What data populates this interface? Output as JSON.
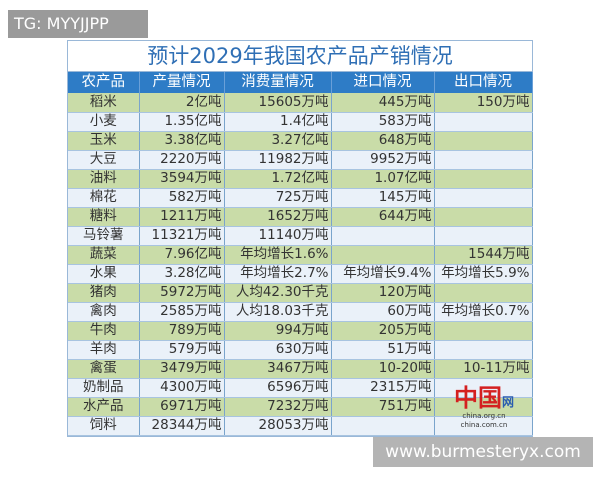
{
  "overlay_tag": "TG: MYYJJPP",
  "watermark": "www.burmesteryx.com",
  "logo": {
    "mark": "中国",
    "net": "网",
    "line1": "china.org.cn",
    "line2": "china.com.cn"
  },
  "title": "预计2029年我国农产品产销情况",
  "headers": [
    "农产品",
    "产量情况",
    "消费量情况",
    "进口情况",
    "出口情况"
  ],
  "rows": [
    [
      "稻米",
      "2亿吨",
      "15605万吨",
      "445万吨",
      "150万吨"
    ],
    [
      "小麦",
      "1.35亿吨",
      "1.4亿吨",
      "583万吨",
      ""
    ],
    [
      "玉米",
      "3.38亿吨",
      "3.27亿吨",
      "648万吨",
      ""
    ],
    [
      "大豆",
      "2220万吨",
      "11982万吨",
      "9952万吨",
      ""
    ],
    [
      "油料",
      "3594万吨",
      "1.72亿吨",
      "1.07亿吨",
      ""
    ],
    [
      "棉花",
      "582万吨",
      "725万吨",
      "145万吨",
      ""
    ],
    [
      "糖料",
      "1211万吨",
      "1652万吨",
      "644万吨",
      ""
    ],
    [
      "马铃薯",
      "11321万吨",
      "11140万吨",
      "",
      ""
    ],
    [
      "蔬菜",
      "7.96亿吨",
      "年均增长1.6%",
      "",
      "1544万吨"
    ],
    [
      "水果",
      "3.28亿吨",
      "年均增长2.7%",
      "年均增长9.4%",
      "年均增长5.9%"
    ],
    [
      "猪肉",
      "5972万吨",
      "人均42.30千克",
      "120万吨",
      ""
    ],
    [
      "禽肉",
      "2585万吨",
      "人均18.03千克",
      "60万吨",
      "年均增长0.7%"
    ],
    [
      "牛肉",
      "789万吨",
      "994万吨",
      "205万吨",
      ""
    ],
    [
      "羊肉",
      "579万吨",
      "630万吨",
      "51万吨",
      ""
    ],
    [
      "禽蛋",
      "3479万吨",
      "3467万吨",
      "10-20吨",
      "10-11万吨"
    ],
    [
      "奶制品",
      "4300万吨",
      "6596万吨",
      "2315万吨",
      ""
    ],
    [
      "水产品",
      "6971万吨",
      "7232万吨",
      "751万吨",
      ""
    ],
    [
      "饲料",
      "28344万吨",
      "28053万吨",
      "",
      ""
    ]
  ],
  "colors": {
    "header": "#2e7cc6",
    "title": "#2f6fb5",
    "row_green": "#c9dca8",
    "row_blue": "#eaf1f9"
  }
}
